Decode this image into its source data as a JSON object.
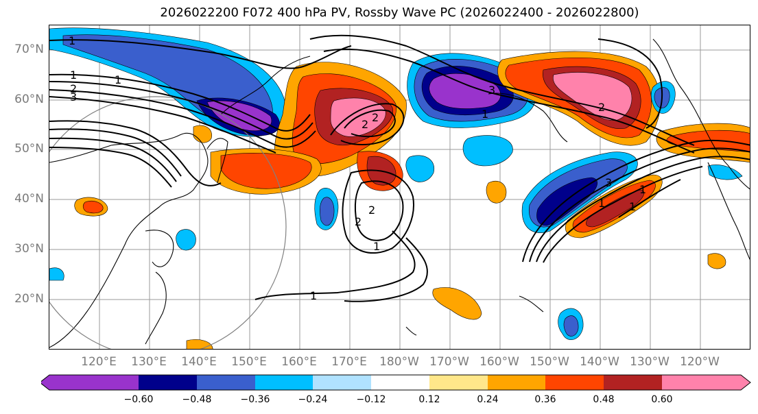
{
  "title": "2026022200 F072 400 hPa PV, Rossby Wave PC (2026022400 - 2026022800)",
  "map": {
    "lat_labels": [
      "70°N",
      "60°N",
      "50°N",
      "40°N",
      "30°N",
      "20°N"
    ],
    "lon_labels": [
      "120°E",
      "130°E",
      "140°E",
      "150°E",
      "160°E",
      "170°E",
      "180°W",
      "170°W",
      "160°W",
      "150°W",
      "140°W",
      "130°W",
      "120°W"
    ],
    "contour_labels": [
      "1",
      "1",
      "1",
      "2",
      "3",
      "2",
      "2",
      "2",
      "1",
      "3",
      "1",
      "2",
      "1",
      "2",
      "1",
      "3",
      "1",
      "1"
    ]
  },
  "colorbar": {
    "colors": [
      "#9933cc",
      "#00008b",
      "#3a5fcd",
      "#00bfff",
      "#b0e2ff",
      "#ffffff",
      "#ffe78a",
      "#ffa500",
      "#ff4500",
      "#b22222",
      "#ff82ab"
    ],
    "tick_labels": [
      "−0.60",
      "−0.48",
      "−0.36",
      "−0.24",
      "−0.12",
      "0.12",
      "0.24",
      "0.36",
      "0.48",
      "0.60"
    ]
  }
}
